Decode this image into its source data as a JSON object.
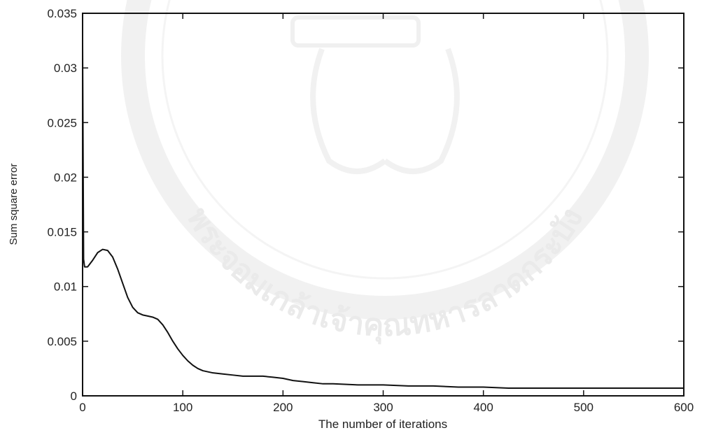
{
  "chart_data": {
    "type": "line",
    "title": "",
    "xlabel": "The number of iterations",
    "ylabel": "Sum square error",
    "xlim": [
      0,
      600
    ],
    "ylim": [
      0,
      0.035
    ],
    "xticks": [
      "0",
      "100",
      "200",
      "300",
      "400",
      "500",
      "600"
    ],
    "yticks": [
      "0",
      "0.005",
      "0.01",
      "0.015",
      "0.02",
      "0.025",
      "0.03",
      "0.035"
    ],
    "grid": false,
    "legend": "none",
    "line_color": "#111111",
    "series": [
      {
        "x": [
          0,
          1,
          2,
          5,
          10,
          15,
          20,
          25,
          30,
          35,
          40,
          45,
          50,
          55,
          60,
          65,
          70,
          75,
          80,
          85,
          90,
          95,
          100,
          105,
          110,
          115,
          120,
          130,
          140,
          150,
          160,
          170,
          180,
          190,
          200,
          210,
          220,
          230,
          240,
          250,
          275,
          300,
          325,
          350,
          375,
          400,
          425,
          450,
          475,
          500,
          525,
          550,
          575,
          600
        ],
        "y": [
          0.0322,
          0.0125,
          0.0118,
          0.0118,
          0.0124,
          0.0131,
          0.0134,
          0.0133,
          0.0127,
          0.0116,
          0.0103,
          0.009,
          0.0081,
          0.0076,
          0.0074,
          0.0073,
          0.0072,
          0.007,
          0.0065,
          0.0058,
          0.005,
          0.0043,
          0.0037,
          0.0032,
          0.0028,
          0.0025,
          0.0023,
          0.0021,
          0.002,
          0.0019,
          0.0018,
          0.0018,
          0.0018,
          0.0017,
          0.0016,
          0.0014,
          0.0013,
          0.0012,
          0.0011,
          0.0011,
          0.001,
          0.001,
          0.0009,
          0.0009,
          0.0008,
          0.0008,
          0.0007,
          0.0007,
          0.0007,
          0.0007,
          0.0007,
          0.0007,
          0.0007,
          0.0007
        ]
      }
    ]
  },
  "watermark": {
    "text": "พระจอมเกล้าเจ้าคุณทหารลาดกระบัง"
  }
}
